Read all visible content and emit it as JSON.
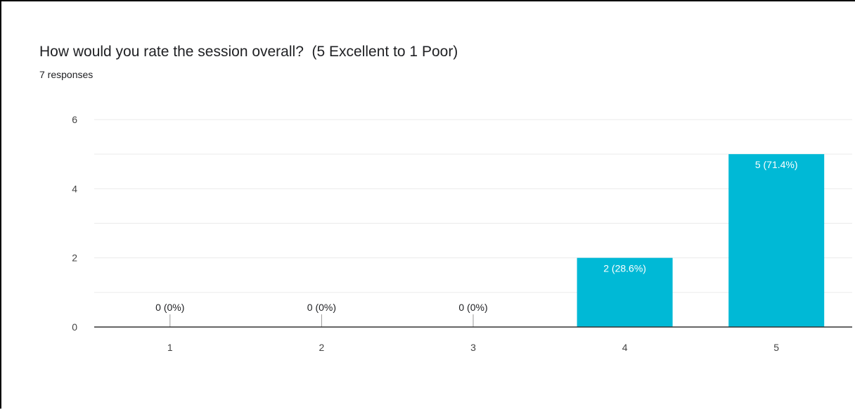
{
  "question": {
    "title": "How would you rate the session overall?  (5 Excellent to 1 Poor)",
    "responses": "7 responses"
  },
  "colors": {
    "bar": "#00b9d6",
    "grid": "#ebebeb",
    "axis": "#333333",
    "label_outside": "#202124",
    "label_inside": "#ffffff"
  },
  "chart_data": {
    "type": "bar",
    "categories": [
      "1",
      "2",
      "3",
      "4",
      "5"
    ],
    "values": [
      0,
      0,
      0,
      2,
      5
    ],
    "data_labels": [
      "0 (0%)",
      "0 (0%)",
      "0 (0%)",
      "2 (28.6%)",
      "5 (71.4%)"
    ],
    "title": "How would you rate the session overall?  (5 Excellent to 1 Poor)",
    "xlabel": "",
    "ylabel": "",
    "ylim": [
      0,
      6
    ],
    "yticks": [
      0,
      2,
      4,
      6
    ],
    "grid": true,
    "legend": "none"
  }
}
